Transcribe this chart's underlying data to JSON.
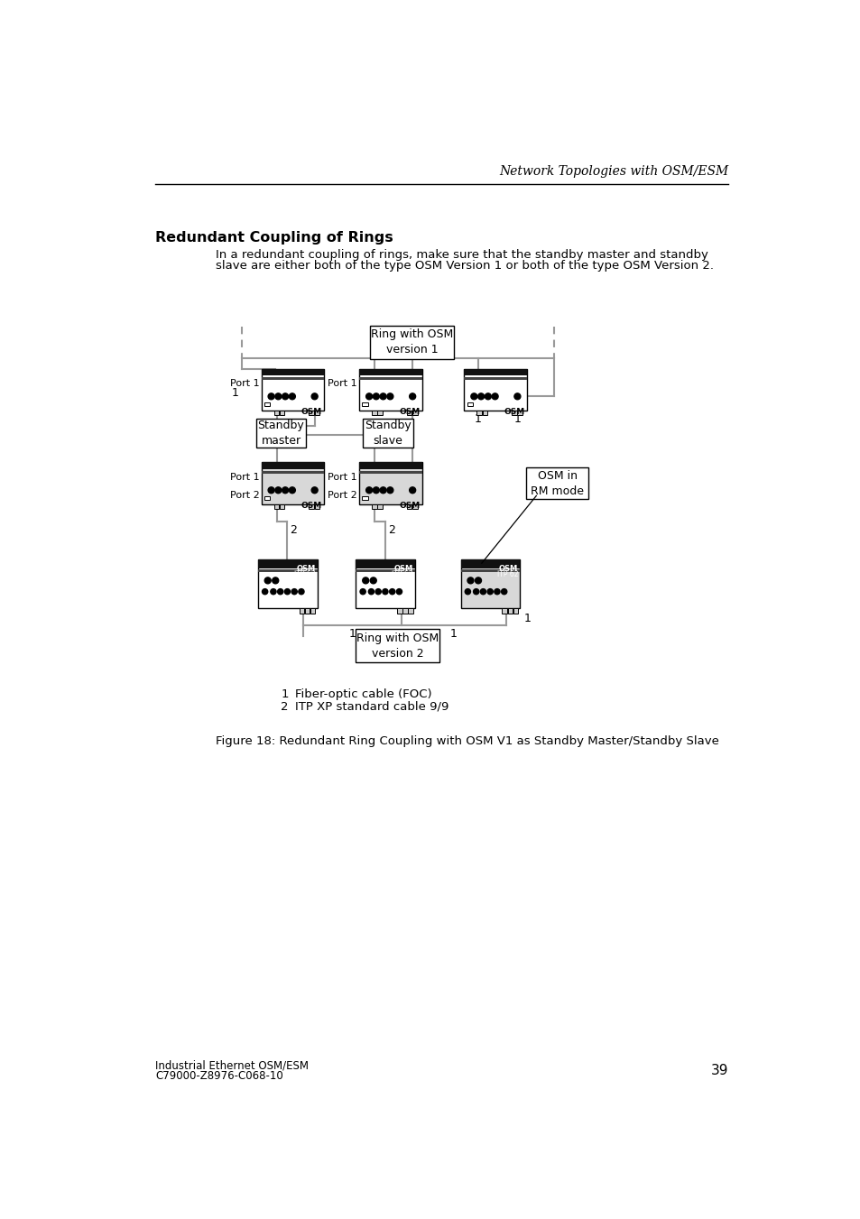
{
  "page_title": "Network Topologies with OSM/ESM",
  "section_title": "Redundant Coupling of Rings",
  "body_text_1": "In a redundant coupling of rings, make sure that the standby master and standby",
  "body_text_2": "slave are either both of the type OSM Version 1 or both of the type OSM Version 2.",
  "figure_caption": "Figure 18: Redundant Ring Coupling with OSM V1 as Standby Master/Standby Slave",
  "legend_1_num": "1",
  "legend_1_text": "Fiber-optic cable (FOC)",
  "legend_2_num": "2",
  "legend_2_text": "ITP XP standard cable 9/9",
  "footer_line1": "Industrial Ethernet OSM/ESM",
  "footer_line2": "C79000-Z8976-C068-10",
  "footer_page": "39",
  "bg_color": "#ffffff",
  "text_color": "#000000",
  "line_gray": "#999999",
  "device_gray": "#d8d8d8",
  "header_black": "#111111"
}
